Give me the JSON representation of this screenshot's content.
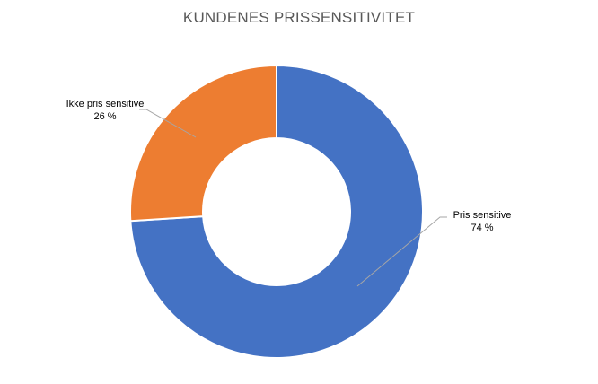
{
  "chart_data": {
    "type": "pie",
    "variant": "donut",
    "title": "KUNDENES PRISSENSITIVITET",
    "slices": [
      {
        "label": "Pris sensitive",
        "value": 74,
        "value_label": "74 %",
        "color": "#4472C4"
      },
      {
        "label": "Ikke pris sensitive",
        "value": 26,
        "value_label": "26 %",
        "color": "#ED7D31"
      }
    ],
    "start_angle": "12 o'clock",
    "direction": "clockwise",
    "legend": "none"
  }
}
